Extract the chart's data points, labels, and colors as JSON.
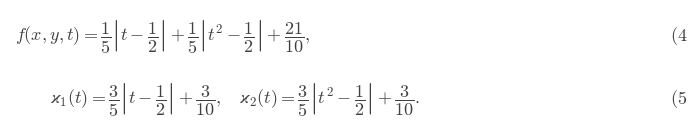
{
  "line1": "f(x,y,t) = \\dfrac{1}{5}\\left|t - \\dfrac{1}{2}\\right| + \\dfrac{1}{5}\\left|t^2 - \\dfrac{1}{2}\\right| + \\dfrac{21}{10},",
  "line2": "\\varkappa_1(t) = \\dfrac{3}{5}\\left|t - \\dfrac{1}{2}\\right| + \\dfrac{3}{10}, \\quad \\varkappa_2(t) = \\dfrac{3}{5}\\left|t^2 - \\dfrac{1}{2}\\right| + \\dfrac{3}{10}.",
  "eq_num1": "(4",
  "eq_num2": "(5",
  "fontsize": 13,
  "background_color": "#ffffff",
  "text_color": "#404040",
  "fig_width": 6.99,
  "fig_height": 1.28,
  "dpi": 100
}
